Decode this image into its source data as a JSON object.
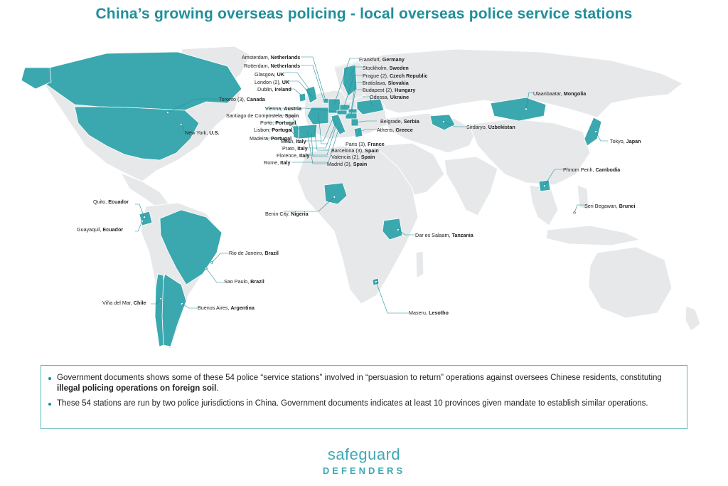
{
  "title": "China’s growing overseas policing - local overseas police service stations",
  "colors": {
    "accent": "#1f8f9a",
    "highlight_country": "#3aa8ae",
    "land": "#e6e8ea",
    "border": "#5fb7be"
  },
  "stations": [
    {
      "id": "amsterdam",
      "city": "Amsterdam,",
      "country": "Netherlands"
    },
    {
      "id": "rotterdam",
      "city": "Rotterdam,",
      "country": "Netherlands"
    },
    {
      "id": "glasgow",
      "city": "Glasgow,",
      "country": "UK"
    },
    {
      "id": "london",
      "city": "London (2),",
      "country": "UK"
    },
    {
      "id": "dublin",
      "city": "Dublin,",
      "country": "Ireland"
    },
    {
      "id": "frankfurt",
      "city": "Frankfurt,",
      "country": "Germany"
    },
    {
      "id": "stockholm",
      "city": "Stockholm,",
      "country": "Sweden"
    },
    {
      "id": "prague",
      "city": "Prague (2),",
      "country": "Czech Republic"
    },
    {
      "id": "bratislava",
      "city": "Bratislava,",
      "country": "Slovakia"
    },
    {
      "id": "budapest",
      "city": "Budapest (2),",
      "country": "Hungary"
    },
    {
      "id": "odessa",
      "city": "Odessa,",
      "country": "Ukraine"
    },
    {
      "id": "toronto",
      "city": "Toronto (3),",
      "country": "Canada"
    },
    {
      "id": "vienna",
      "city": "Vienna,",
      "country": "Austria"
    },
    {
      "id": "santiago",
      "city": "Santiago de Compostela,",
      "country": "Spain"
    },
    {
      "id": "porto",
      "city": "Porto,",
      "country": "Portugal"
    },
    {
      "id": "lisbon",
      "city": "Lisbon,",
      "country": "Portugal"
    },
    {
      "id": "newyork",
      "city": "New York,",
      "country": "U.S."
    },
    {
      "id": "madeira",
      "city": "Madeira,",
      "country": "Portugal"
    },
    {
      "id": "milan",
      "city": "Milan,",
      "country": "Italy"
    },
    {
      "id": "prato",
      "city": "Prato,",
      "country": "Italy"
    },
    {
      "id": "florence",
      "city": "Florence,",
      "country": "Italy"
    },
    {
      "id": "rome",
      "city": "Rome,",
      "country": "Italy"
    },
    {
      "id": "paris",
      "city": "Paris (3),",
      "country": "France"
    },
    {
      "id": "barcelona",
      "city": "Barcelona (3),",
      "country": "Spain"
    },
    {
      "id": "valencia",
      "city": "Valencia (2),",
      "country": "Spain"
    },
    {
      "id": "madrid",
      "city": "Madrid (3),",
      "country": "Spain"
    },
    {
      "id": "belgrade",
      "city": "Belgrade,",
      "country": "Serbia"
    },
    {
      "id": "athens",
      "city": "Athens,",
      "country": "Greece"
    },
    {
      "id": "sirdaryo",
      "city": "Sirdaryo,",
      "country": "Uzbekistan"
    },
    {
      "id": "ulaanbaatar",
      "city": "Ulaanbaatar,",
      "country": "Mongolia"
    },
    {
      "id": "tokyo",
      "city": "Tokyo,",
      "country": "Japan"
    },
    {
      "id": "phnompenh",
      "city": "Phnom Penh,",
      "country": "Cambodia"
    },
    {
      "id": "seribegawan",
      "city": "Seri Begawan,",
      "country": "Brunei"
    },
    {
      "id": "benincity",
      "city": "Benin City,",
      "country": "Nigeria"
    },
    {
      "id": "daressalaam",
      "city": "Dar es Salaam,",
      "country": "Tanzania"
    },
    {
      "id": "maseru",
      "city": "Maseru,",
      "country": "Lesotho"
    },
    {
      "id": "quito",
      "city": "Quito,",
      "country": "Ecuador"
    },
    {
      "id": "guayaquil",
      "city": "Guayaquil,",
      "country": "Ecuador"
    },
    {
      "id": "riodejaneiro",
      "city": "Rio de Janeiro,",
      "country": "Brazil"
    },
    {
      "id": "saopaulo",
      "city": "Sao Paulo,",
      "country": "Brazil"
    },
    {
      "id": "vinadelmar",
      "city": "Viña del Mar,",
      "country": "Chile"
    },
    {
      "id": "buenosaires",
      "city": "Buenos Aires,",
      "country": "Argentina"
    }
  ],
  "info": {
    "bullet1_text": "Government documents shows some of these 54 police “service stations” involved in “persuasion to return” operations against oversees Chinese residents, constituting ",
    "bullet1_bold": "illegal policing operations on foreign soil",
    "bullet1_end": ".",
    "bullet2_text": "These 54 stations are run by two police jurisdictions in China. Government documents indicates at least 10 provinces given mandate to establish similar operations."
  },
  "logo": {
    "line1": "safeguard",
    "line2": "DEFENDERS"
  }
}
